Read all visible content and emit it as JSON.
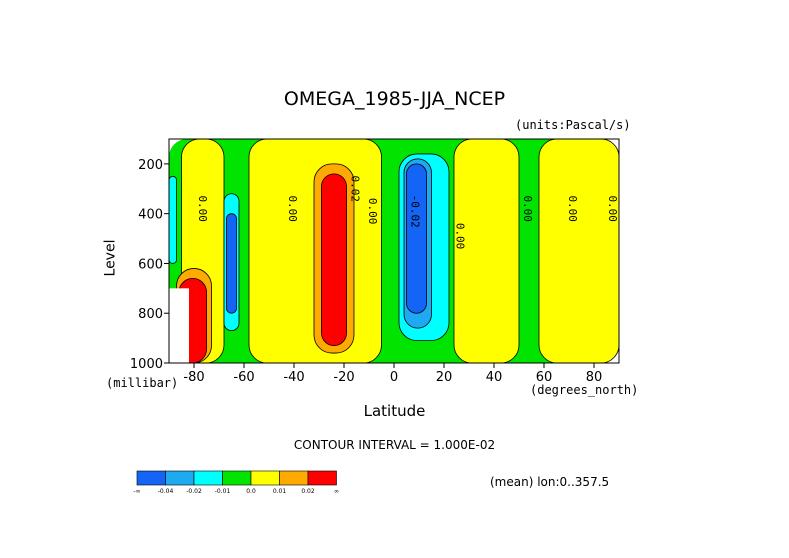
{
  "chart_data": {
    "type": "heatmap",
    "title": "OMEGA_1985-JJA_NCEP",
    "units": "(units:Pascal/s)",
    "xlabel": "Latitude",
    "ylabel": "Level",
    "x_unit": "(degrees_north)",
    "y_unit": "(millibar)",
    "xlim": [
      -90,
      90
    ],
    "ylim": [
      1000,
      100
    ],
    "y_reversed": true,
    "x_ticks": [
      "-80",
      "-60",
      "-40",
      "-20",
      "0",
      "20",
      "40",
      "60",
      "80"
    ],
    "x_tick_values": [
      -80,
      -60,
      -40,
      -20,
      0,
      20,
      40,
      60,
      80
    ],
    "y_ticks": [
      "200",
      "400",
      "600",
      "800",
      "1000"
    ],
    "y_tick_values": [
      200,
      400,
      600,
      800,
      1000
    ],
    "contour_interval": "CONTOUR INTERVAL = 1.000E-02",
    "mean_label": "(mean) lon:0..357.5",
    "contour_labels": [
      {
        "text": "0.00",
        "lat": -78,
        "lev": 380
      },
      {
        "text": "0.00",
        "lat": -42,
        "lev": 380
      },
      {
        "text": "0.02",
        "lat": -17,
        "lev": 300
      },
      {
        "text": "0.00",
        "lat": -10,
        "lev": 390
      },
      {
        "text": "-0.02",
        "lat": 7,
        "lev": 390
      },
      {
        "text": "0.00",
        "lat": 25,
        "lev": 490
      },
      {
        "text": "0.00",
        "lat": 52,
        "lev": 380
      },
      {
        "text": "0.00",
        "lat": 70,
        "lev": 380
      },
      {
        "text": "0.00",
        "lat": 86,
        "lev": 380
      }
    ],
    "field_regions": [
      {
        "level": "<0.0",
        "lat": [
          -90,
          90
        ],
        "lev": [
          100,
          1000
        ]
      },
      {
        "level": "0.0-0.01",
        "lat": [
          -85,
          -68
        ],
        "lev": [
          100,
          1000
        ]
      },
      {
        "level": "0.0-0.01",
        "lat": [
          -58,
          -5
        ],
        "lev": [
          100,
          1000
        ]
      },
      {
        "level": "0.0-0.01",
        "lat": [
          24,
          50
        ],
        "lev": [
          100,
          1000
        ]
      },
      {
        "level": "0.0-0.01",
        "lat": [
          58,
          90
        ],
        "lev": [
          100,
          1000
        ]
      },
      {
        "level": "0.01-0.02",
        "lat": [
          -32,
          -16
        ],
        "lev": [
          200,
          960
        ]
      },
      {
        "level": ">0.02",
        "lat": [
          -29,
          -19
        ],
        "lev": [
          240,
          930
        ]
      },
      {
        "level": "-0.01-0.0",
        "lat": [
          -90,
          -87
        ],
        "lev": [
          250,
          600
        ]
      },
      {
        "level": "-0.01-0.0",
        "lat": [
          -68,
          -62
        ],
        "lev": [
          320,
          870
        ]
      },
      {
        "level": "-0.01-0.0",
        "lat": [
          2,
          22
        ],
        "lev": [
          160,
          910
        ]
      },
      {
        "level": "-0.02--0.01",
        "lat": [
          4,
          15
        ],
        "lev": [
          180,
          860
        ]
      },
      {
        "level": "-0.04--0.02",
        "lat": [
          -67,
          -63
        ],
        "lev": [
          400,
          800
        ]
      },
      {
        "level": "-0.04--0.02",
        "lat": [
          5,
          13
        ],
        "lev": [
          200,
          800
        ]
      },
      {
        "level": "0.01-0.02",
        "lat": [
          -87,
          -73
        ],
        "lev": [
          620,
          1000
        ]
      },
      {
        "level": ">0.02",
        "lat": [
          -86,
          -75
        ],
        "lev": [
          660,
          1000
        ]
      },
      {
        "level": "missing",
        "lat": [
          -90,
          -82
        ],
        "lev": [
          700,
          1000
        ]
      }
    ],
    "colorbar": {
      "labels": [
        "-∞",
        "-0.04",
        "-0.02",
        "-0.01",
        "0.0",
        "0.01",
        "0.02",
        "∞"
      ],
      "colors": [
        "#1464f5",
        "#1eaaf0",
        "#00ffff",
        "#00e400",
        "#ffff00",
        "#ffaa00",
        "#ff0000"
      ]
    },
    "colors": {
      "<0.0": "#00e400",
      "-0.01-0.0": "#00ffff",
      "-0.02--0.01": "#1eaaf0",
      "-0.04--0.02": "#1464f5",
      "0.0-0.01": "#ffff00",
      "0.01-0.02": "#ffaa00",
      ">0.02": "#ff0000",
      "missing": "#ffffff"
    }
  }
}
